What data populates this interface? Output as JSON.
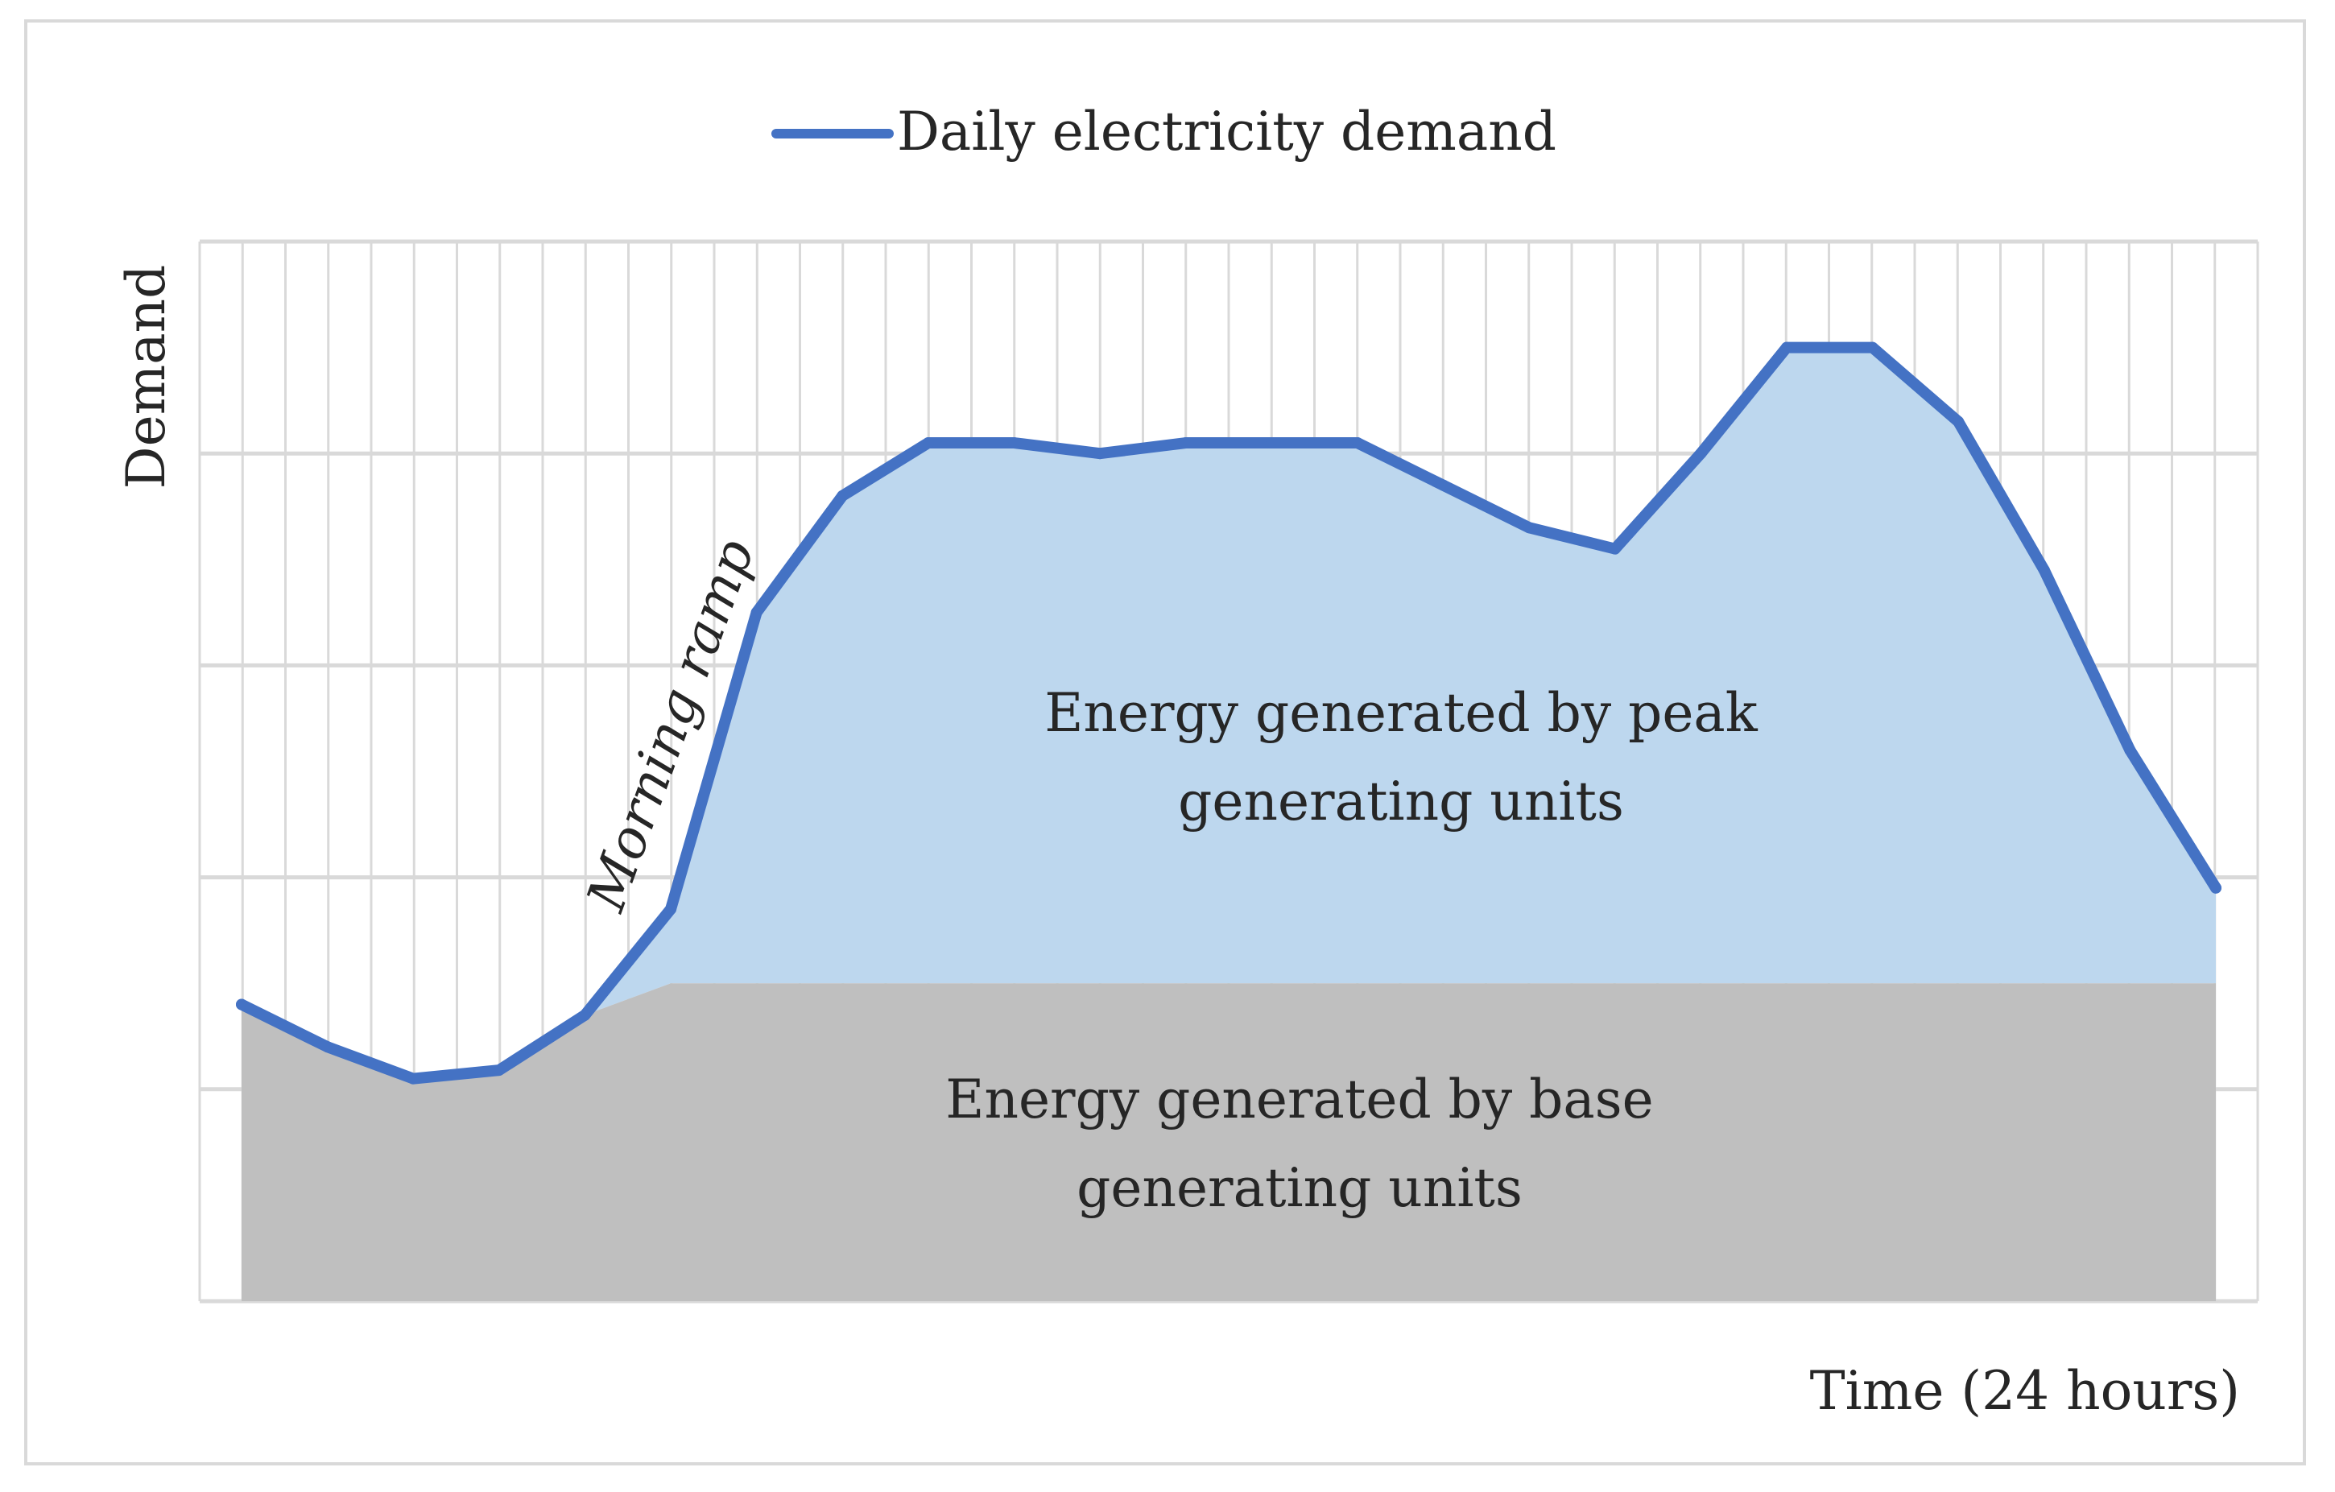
{
  "chart_data": {
    "type": "area",
    "legend": {
      "label": "Daily electricity demand",
      "placement": "top-center"
    },
    "ylabel": "Demand",
    "xlabel": "Time (24 hours)",
    "ylim": [
      0,
      5
    ],
    "y_gridlines": [
      1,
      2,
      3,
      4,
      5
    ],
    "xlim": [
      0,
      24
    ],
    "x_gridline_count": 48,
    "series": [
      {
        "name": "Daily electricity demand",
        "x": [
          0,
          1,
          2,
          3,
          4,
          5,
          6,
          7,
          8,
          9,
          10,
          11,
          12,
          13,
          14,
          15,
          16,
          17,
          18,
          19,
          20,
          21,
          22,
          23
        ],
        "values": [
          1.4,
          1.2,
          1.05,
          1.09,
          1.35,
          1.85,
          3.25,
          3.8,
          4.05,
          4.05,
          4.0,
          4.05,
          4.05,
          4.05,
          3.85,
          3.65,
          3.55,
          4.0,
          4.5,
          4.5,
          4.15,
          3.45,
          2.6,
          1.95
        ]
      }
    ],
    "base_load": {
      "value": 1.5,
      "ramp_start_x": 4,
      "ramp_end_x": 5
    },
    "colors": {
      "demand_line": "#4472c4",
      "peak_area": "#bdd7ee",
      "base_area": "#bfbfbf",
      "grid": "#d9d9d9"
    },
    "annotations": {
      "peak_area": [
        "Energy generated by peak",
        "generating units"
      ],
      "base_area": [
        "Energy generated by base",
        "generating units"
      ],
      "ramp": "Morning ramp"
    }
  }
}
